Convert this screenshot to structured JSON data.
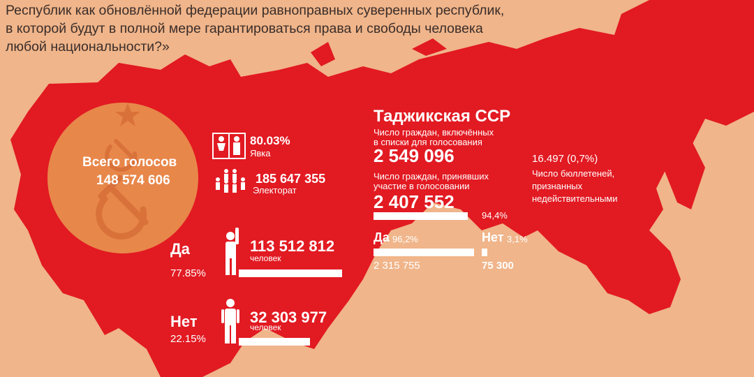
{
  "colors": {
    "background": "#f0b58a",
    "map": "#e21a22",
    "circle": "#e8874a",
    "text_light": "#ffffff"
  },
  "question": {
    "line1": "Республик как обновлённой федерации равноправных суверенных республик,",
    "line2": "в которой будут в полной мере гарантироваться права и свободы человека",
    "line3": "любой национальности?»"
  },
  "total": {
    "label": "Всего голосов",
    "value": "148 574 606"
  },
  "turnout": {
    "value": "80.03%",
    "label": "Явка"
  },
  "electorate": {
    "value": "185 647 355",
    "label": "Электорат"
  },
  "yes": {
    "label": "Да",
    "percent": "77.85%",
    "count": "113 512 812",
    "unit": "человек",
    "bar_fraction": 0.7785
  },
  "no": {
    "label": "Нет",
    "percent": "22.15%",
    "count": "32 303 977",
    "unit": "человек",
    "bar_fraction": 0.2215
  },
  "tajik": {
    "title": "Таджикская ССР",
    "listed_label_1": "Число граждан, включённых",
    "listed_label_2": "в списки для голосования",
    "listed_value": "2 549 096",
    "participated_label_1": "Число граждан, принявших",
    "participated_label_2": "участие в голосовании",
    "participated_value": "2 407 552",
    "participated_percent": "94,4%",
    "yes_label": "Да",
    "yes_percent": "96,2%",
    "yes_count": "2 315 755",
    "no_label": "Нет",
    "no_percent": "3,1%",
    "no_count": "75 300"
  },
  "invalid": {
    "value": "16.497 (0,7%)",
    "label_1": "Число бюллетеней,",
    "label_2": "признанных",
    "label_3": "недействительными"
  },
  "icons": [
    "turnout-people-icon",
    "electorate-crowd-icon",
    "person-raising-hand-icon",
    "person-standing-icon",
    "hammer-sickle-icon",
    "star-icon"
  ]
}
